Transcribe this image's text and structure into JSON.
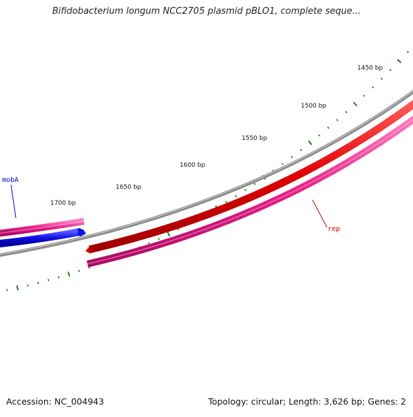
{
  "title": "Bifidobacterium longum NCC2705 plasmid pBLO1, complete seque...",
  "footer": {
    "accession": "Accession: NC_004943",
    "summary": "Topology: circular; Length: 3,626 bp; Genes: 2"
  },
  "map": {
    "length_bp": 3626,
    "topology": "circular",
    "tick_labels": [
      "1450 bp",
      "1500 bp",
      "1550 bp",
      "1600 bp",
      "1650 bp",
      "1700 bp"
    ],
    "genes": [
      {
        "name": "mobA",
        "color": "#0000cc",
        "label_color": "#0000cc"
      },
      {
        "name": "rep",
        "color": "#e00000",
        "label_color": "#cc0000"
      }
    ],
    "colors": {
      "backbone": "#8c8c8c",
      "cds_track": "#e8208a",
      "mobA_gene": "#1010e8",
      "rep_gene": "#e00000",
      "ticks": "#1a7a1a"
    }
  }
}
